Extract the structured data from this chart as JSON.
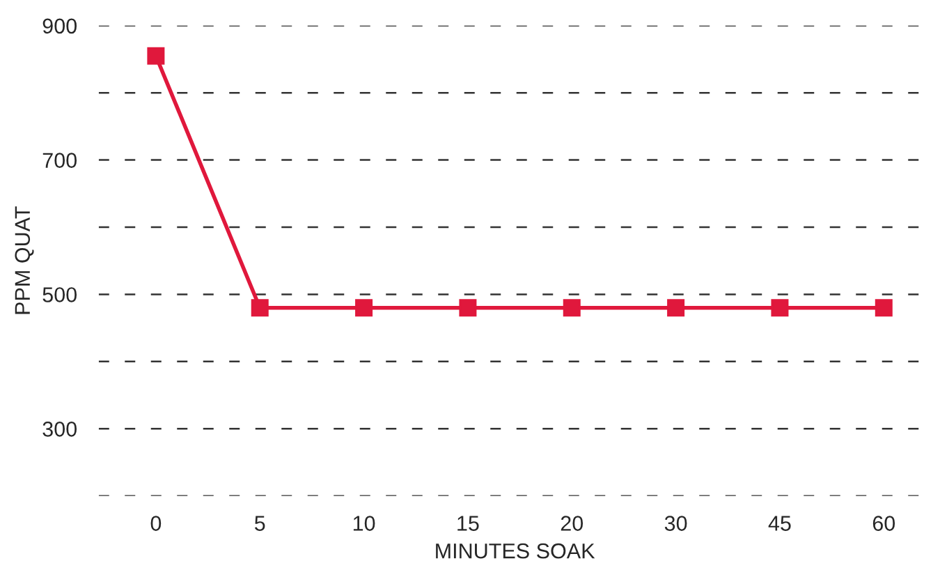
{
  "chart_data": {
    "type": "line",
    "xlabel": "MINUTES SOAK",
    "ylabel": "PPM QUAT",
    "categories": [
      "0",
      "5",
      "10",
      "15",
      "20",
      "30",
      "45",
      "60"
    ],
    "series": [
      {
        "color": "#e0183c",
        "values": [
          855,
          480,
          480,
          480,
          480,
          480,
          480,
          480
        ]
      }
    ],
    "ylim": [
      200,
      900
    ],
    "yticks": [
      {
        "value": 200,
        "label": null
      },
      300,
      {
        "value": 400,
        "label": null
      },
      500,
      {
        "value": 600,
        "label": null
      },
      700,
      {
        "value": 800,
        "label": null
      },
      900
    ],
    "grid": "y",
    "marker": "square",
    "line_style": "solid",
    "legend": false
  }
}
